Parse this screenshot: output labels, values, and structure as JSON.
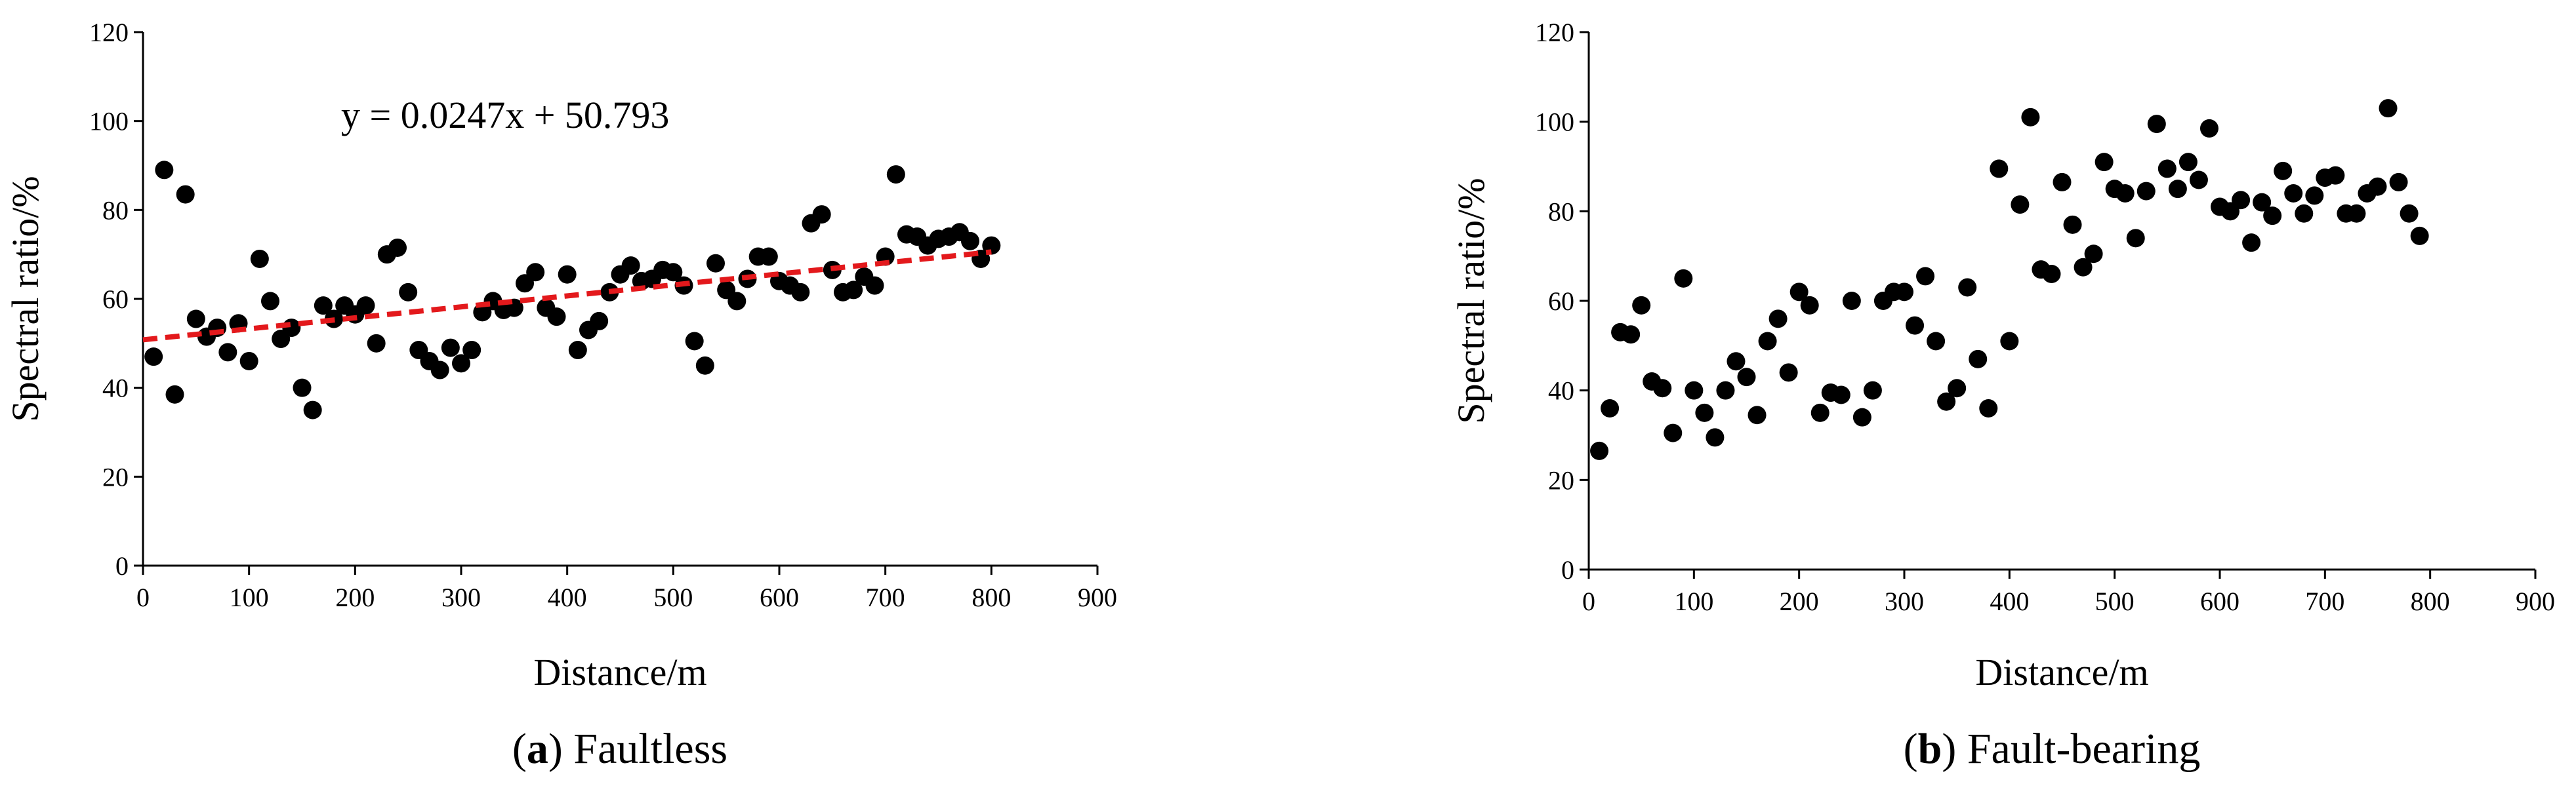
{
  "charts": [
    {
      "caption_letter": "a",
      "caption_text": " Faultless"
    },
    {
      "caption_letter": "b",
      "caption_text": " Fault-bearing"
    }
  ],
  "chart_data": [
    {
      "type": "scatter",
      "xlabel": "Distance/m",
      "ylabel": "Spectral ratio/%",
      "xlim": [
        0,
        900
      ],
      "ylim": [
        0,
        120
      ],
      "xticks": [
        0,
        100,
        200,
        300,
        400,
        500,
        600,
        700,
        800,
        900
      ],
      "yticks": [
        0,
        20,
        40,
        60,
        80,
        100,
        120
      ],
      "grid": false,
      "point_color": "#000000",
      "trendline": {
        "equation": "y = 0.0247x + 50.793",
        "slope": 0.0247,
        "intercept": 50.793,
        "x_range": [
          0,
          800
        ],
        "color": "#e3191c",
        "style": "dashed"
      },
      "points": [
        [
          10,
          47
        ],
        [
          20,
          89
        ],
        [
          30,
          38.5
        ],
        [
          40,
          83.5
        ],
        [
          50,
          55.5
        ],
        [
          60,
          51.5
        ],
        [
          70,
          53.5
        ],
        [
          80,
          48
        ],
        [
          90,
          54.5
        ],
        [
          100,
          46
        ],
        [
          110,
          69
        ],
        [
          120,
          59.5
        ],
        [
          130,
          51
        ],
        [
          140,
          53.5
        ],
        [
          150,
          40
        ],
        [
          160,
          35
        ],
        [
          170,
          58.5
        ],
        [
          180,
          55.5
        ],
        [
          190,
          58.5
        ],
        [
          200,
          56.5
        ],
        [
          210,
          58.5
        ],
        [
          220,
          50
        ],
        [
          230,
          70
        ],
        [
          240,
          71.5
        ],
        [
          250,
          61.5
        ],
        [
          260,
          48.5
        ],
        [
          270,
          46
        ],
        [
          280,
          44
        ],
        [
          290,
          49
        ],
        [
          300,
          45.5
        ],
        [
          310,
          48.5
        ],
        [
          320,
          57
        ],
        [
          330,
          59.5
        ],
        [
          340,
          57.5
        ],
        [
          350,
          58
        ],
        [
          360,
          63.5
        ],
        [
          370,
          66
        ],
        [
          380,
          58
        ],
        [
          390,
          56
        ],
        [
          400,
          65.5
        ],
        [
          410,
          48.5
        ],
        [
          420,
          53
        ],
        [
          430,
          55
        ],
        [
          440,
          61.5
        ],
        [
          450,
          65.5
        ],
        [
          460,
          67.5
        ],
        [
          470,
          64
        ],
        [
          480,
          64.5
        ],
        [
          490,
          66.5
        ],
        [
          500,
          66
        ],
        [
          510,
          63
        ],
        [
          520,
          50.5
        ],
        [
          530,
          45
        ],
        [
          540,
          68
        ],
        [
          550,
          62
        ],
        [
          560,
          59.5
        ],
        [
          570,
          64.5
        ],
        [
          580,
          69.5
        ],
        [
          590,
          69.5
        ],
        [
          600,
          64
        ],
        [
          610,
          63
        ],
        [
          620,
          61.5
        ],
        [
          630,
          77
        ],
        [
          640,
          79
        ],
        [
          650,
          66.5
        ],
        [
          660,
          61.5
        ],
        [
          670,
          62
        ],
        [
          680,
          65
        ],
        [
          690,
          63
        ],
        [
          700,
          69.5
        ],
        [
          710,
          88
        ],
        [
          720,
          74.5
        ],
        [
          730,
          74
        ],
        [
          740,
          72
        ],
        [
          750,
          73.5
        ],
        [
          760,
          74
        ],
        [
          770,
          75
        ],
        [
          780,
          73
        ],
        [
          790,
          69
        ],
        [
          800,
          72
        ]
      ]
    },
    {
      "type": "scatter",
      "xlabel": "Distance/m",
      "ylabel": "Spectral ratio/%",
      "xlim": [
        0,
        900
      ],
      "ylim": [
        0,
        120
      ],
      "xticks": [
        0,
        100,
        200,
        300,
        400,
        500,
        600,
        700,
        800,
        900
      ],
      "yticks": [
        0,
        20,
        40,
        60,
        80,
        100,
        120
      ],
      "grid": false,
      "point_color": "#000000",
      "points": [
        [
          10,
          26.5
        ],
        [
          20,
          36
        ],
        [
          30,
          53
        ],
        [
          40,
          52.5
        ],
        [
          50,
          59
        ],
        [
          60,
          42
        ],
        [
          70,
          40.5
        ],
        [
          80,
          30.5
        ],
        [
          90,
          65
        ],
        [
          100,
          40
        ],
        [
          110,
          35
        ],
        [
          120,
          29.5
        ],
        [
          130,
          40
        ],
        [
          140,
          46.5
        ],
        [
          150,
          43
        ],
        [
          160,
          34.5
        ],
        [
          170,
          51
        ],
        [
          180,
          56
        ],
        [
          190,
          44
        ],
        [
          200,
          62
        ],
        [
          210,
          59
        ],
        [
          220,
          35
        ],
        [
          230,
          39.5
        ],
        [
          240,
          39
        ],
        [
          250,
          60
        ],
        [
          260,
          34
        ],
        [
          270,
          40
        ],
        [
          280,
          60
        ],
        [
          290,
          62
        ],
        [
          300,
          62
        ],
        [
          310,
          54.5
        ],
        [
          320,
          65.5
        ],
        [
          330,
          51
        ],
        [
          340,
          37.5
        ],
        [
          350,
          40.5
        ],
        [
          360,
          63
        ],
        [
          370,
          47
        ],
        [
          380,
          36
        ],
        [
          390,
          89.5
        ],
        [
          400,
          51
        ],
        [
          410,
          81.5
        ],
        [
          420,
          101
        ],
        [
          430,
          67
        ],
        [
          440,
          66
        ],
        [
          450,
          86.5
        ],
        [
          460,
          77
        ],
        [
          470,
          67.5
        ],
        [
          480,
          70.5
        ],
        [
          490,
          91
        ],
        [
          500,
          85
        ],
        [
          510,
          84
        ],
        [
          520,
          74
        ],
        [
          530,
          84.5
        ],
        [
          540,
          99.5
        ],
        [
          550,
          89.5
        ],
        [
          560,
          85
        ],
        [
          570,
          91
        ],
        [
          580,
          87
        ],
        [
          590,
          98.5
        ],
        [
          600,
          81
        ],
        [
          610,
          80
        ],
        [
          620,
          82.5
        ],
        [
          630,
          73
        ],
        [
          640,
          82
        ],
        [
          650,
          79
        ],
        [
          660,
          89
        ],
        [
          670,
          84
        ],
        [
          680,
          79.5
        ],
        [
          690,
          83.5
        ],
        [
          700,
          87.5
        ],
        [
          710,
          88
        ],
        [
          720,
          79.5
        ],
        [
          730,
          79.5
        ],
        [
          740,
          84
        ],
        [
          750,
          85.5
        ],
        [
          760,
          103
        ],
        [
          770,
          86.5
        ],
        [
          780,
          79.5
        ],
        [
          790,
          74.5
        ]
      ]
    }
  ]
}
